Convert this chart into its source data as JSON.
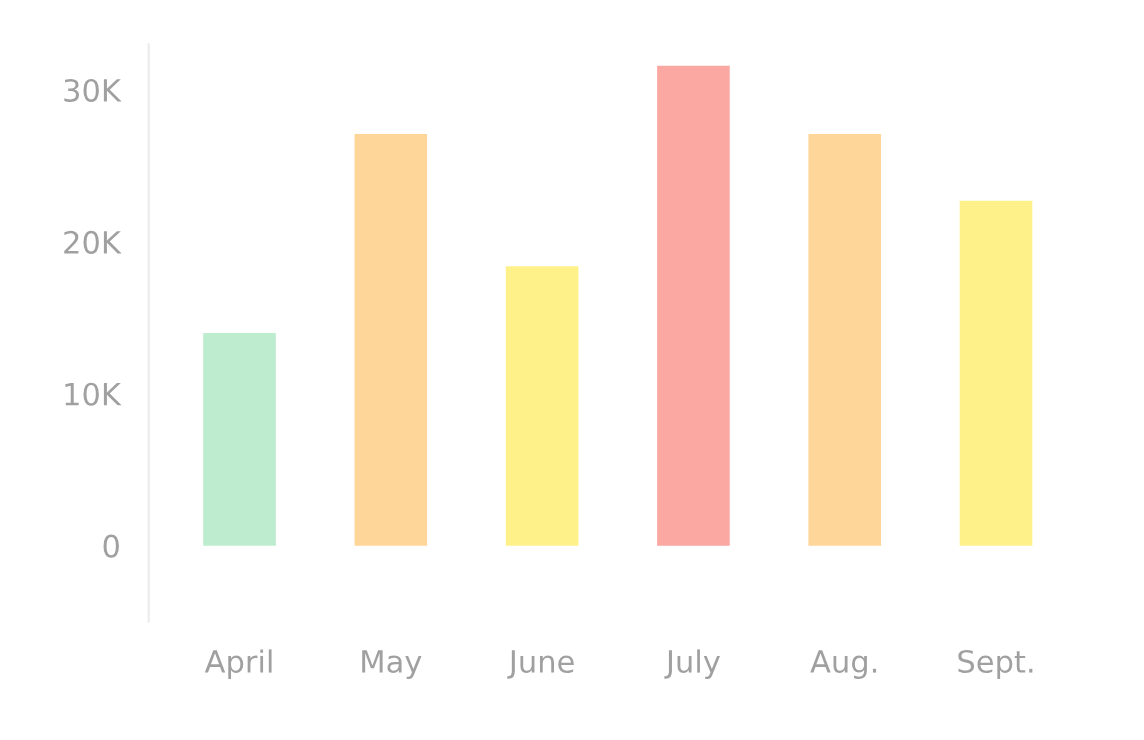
{
  "chart_data": {
    "type": "bar",
    "categories": [
      "April",
      "May",
      "June",
      "July",
      "Aug.",
      "Sept."
    ],
    "values": [
      14000,
      27100,
      18400,
      31600,
      27100,
      22700
    ],
    "colors": [
      "#bdeccf",
      "#ffd699",
      "#fff18a",
      "#fba8a3",
      "#ffd699",
      "#fff18a"
    ],
    "ylim": [
      -5000,
      33000
    ],
    "yticks": [
      {
        "value": 0,
        "label": "0"
      },
      {
        "value": 10000,
        "label": "10K"
      },
      {
        "value": 20000,
        "label": "20K"
      },
      {
        "value": 30000,
        "label": "30K"
      }
    ],
    "grid": false
  }
}
